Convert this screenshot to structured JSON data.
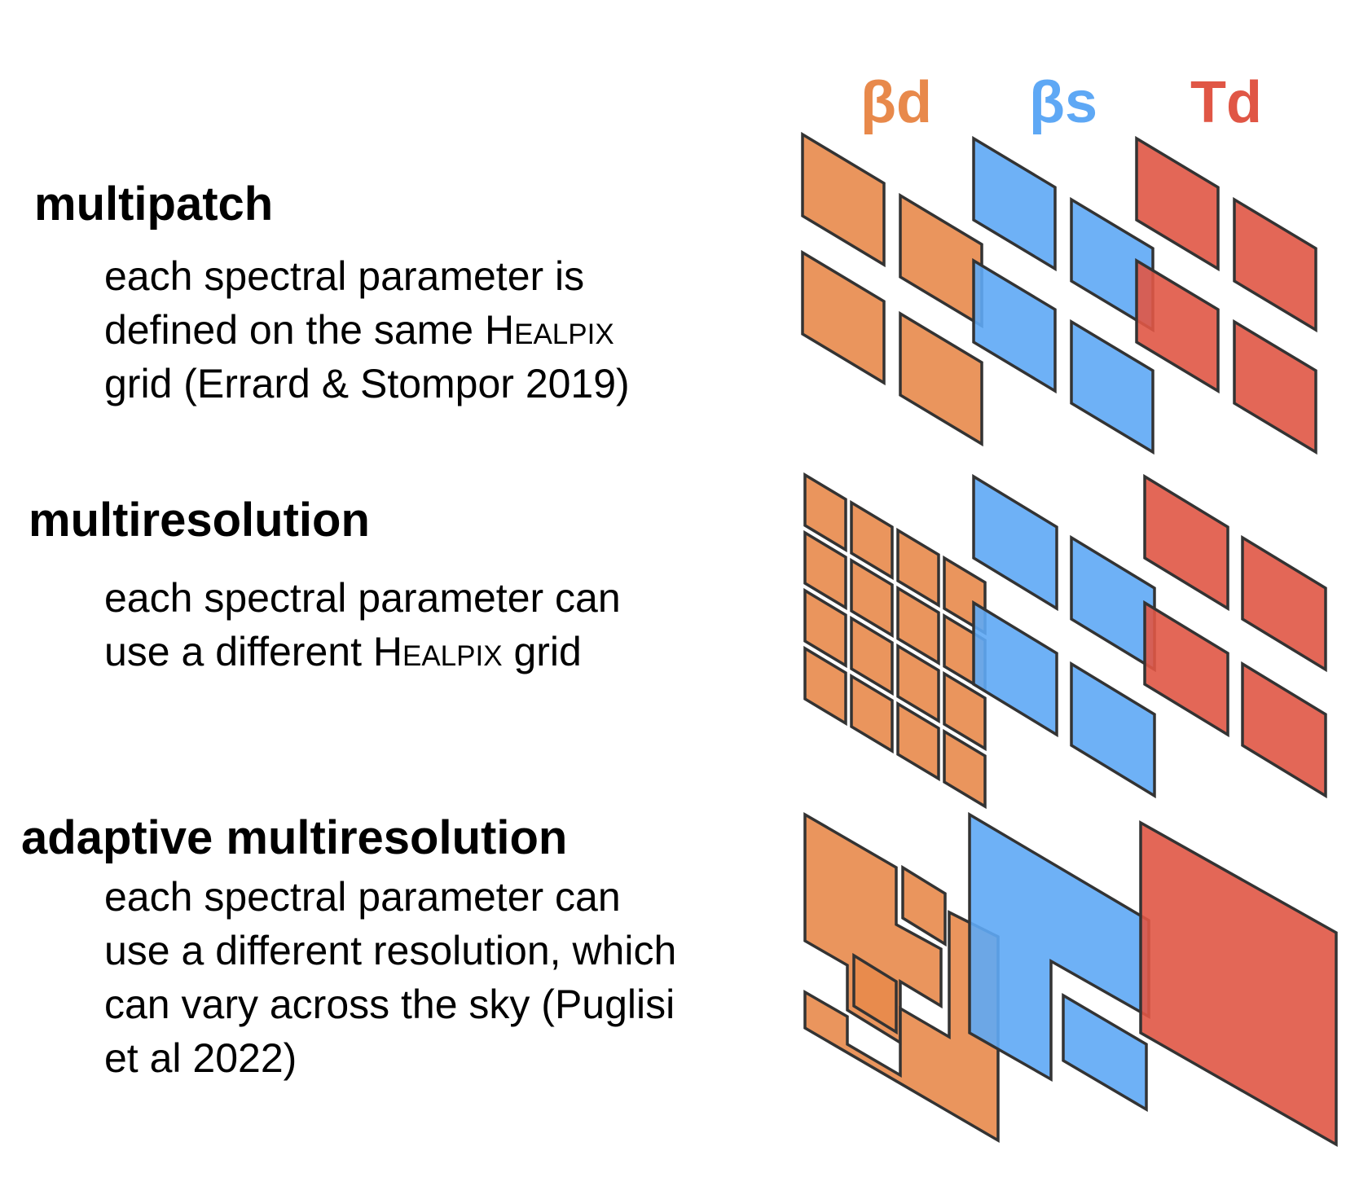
{
  "params": [
    {
      "label": "βd",
      "color": "#E8894B"
    },
    {
      "label": "βs",
      "color": "#5EA8F5"
    },
    {
      "label": "Td",
      "color": "#E05645"
    }
  ],
  "sections": [
    {
      "title": "multipatch",
      "lines": [
        [
          {
            "t": "each spectral parameter is"
          }
        ],
        [
          {
            "t": "defined on the same "
          },
          {
            "t": "Healpix",
            "sc": true
          }
        ],
        [
          {
            "t": "grid (Errard & Stompor 2019)"
          }
        ]
      ]
    },
    {
      "title": "multiresolution",
      "lines": [
        [
          {
            "t": "each spectral parameter can"
          }
        ],
        [
          {
            "t": "use a different "
          },
          {
            "t": "Healpix",
            "sc": true
          },
          {
            "t": " grid"
          }
        ]
      ]
    },
    {
      "title": "adaptive multiresolution",
      "lines": [
        [
          {
            "t": "each spectral parameter can"
          }
        ],
        [
          {
            "t": "use a different resolution, which"
          }
        ],
        [
          {
            "t": "can vary across the sky (Puglisi"
          }
        ],
        [
          {
            "t": "et al 2022)"
          }
        ]
      ]
    }
  ]
}
